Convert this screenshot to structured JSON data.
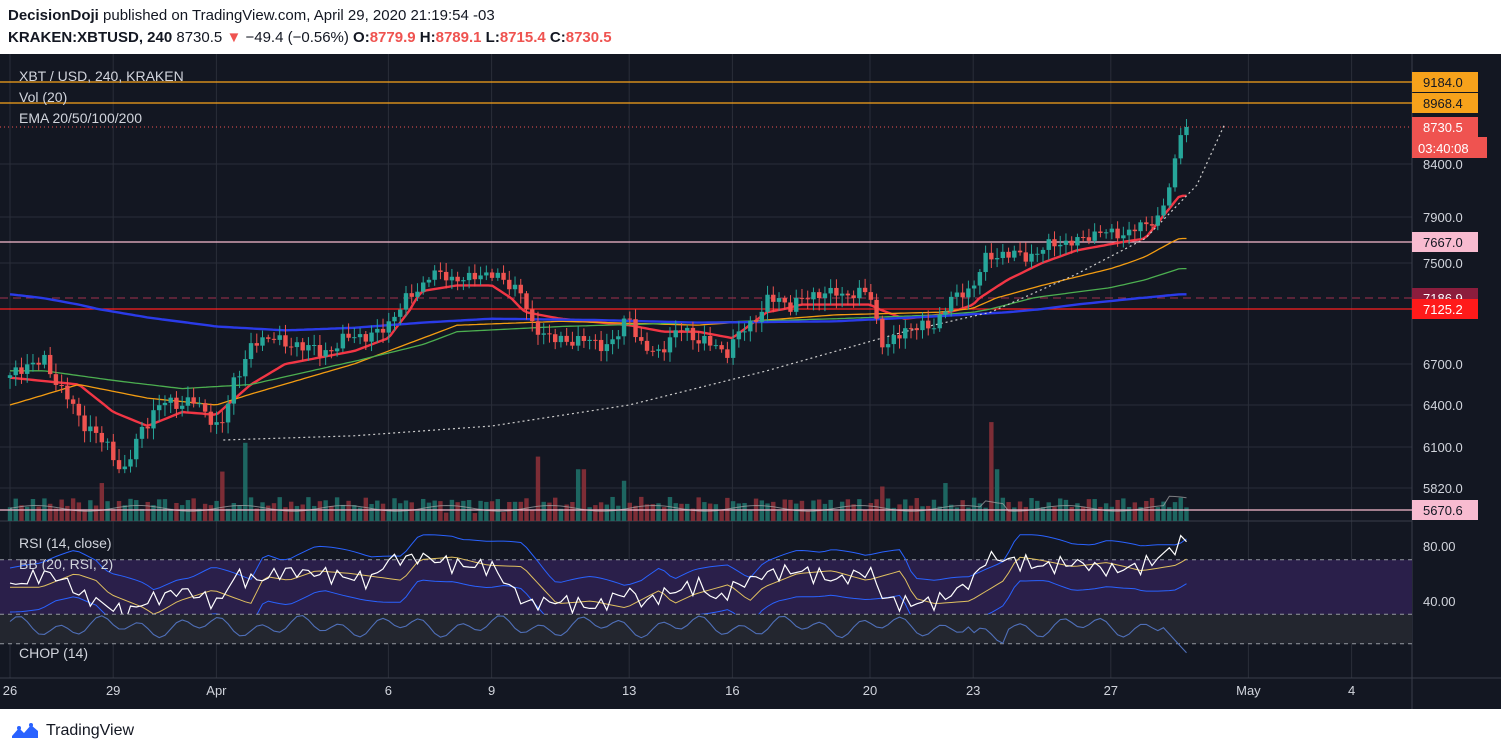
{
  "header": {
    "author": "DecisionDoji",
    "published_text": " published on TradingView.com, April 29, 2020 21:19:54 -03",
    "symbol_interval": "KRAKEN:XBTUSD, 240",
    "last": "8730.5",
    "down_arrow": "▼",
    "change": "−49.4 (−0.56%)",
    "o_label": "O:",
    "o": "8779.9",
    "h_label": "H:",
    "h": "8789.1",
    "l_label": "L:",
    "l": "8715.4",
    "c_label": "C:",
    "c": "8730.5"
  },
  "colors": {
    "background": "#131722",
    "grid": "#2a2e39",
    "text": "#d1d4dc",
    "up": "#26a69a",
    "down": "#ef5350",
    "ema20": "#f23645",
    "ema50": "#f39c12",
    "ema100": "#4caf50",
    "ema200": "#2a3be8",
    "resistance": "#f7a21b",
    "pink": "#f8bbd0",
    "rsi_line": "#ffffff",
    "bb_band": "#2962ff",
    "bb_basis": "#e0c060",
    "rsi_fill": "#2a1f4a"
  },
  "chart_data": {
    "type": "candlestick",
    "legend": [
      "XBT / USD, 240, KRAKEN",
      "Vol (20)",
      "EMA 20/50/100/200"
    ],
    "y_ticks": [
      8400,
      7900,
      7500,
      6700,
      6400,
      6100,
      5820
    ],
    "y_tick_labels": [
      "8400.0",
      "7900.0",
      "7500.0",
      "6700.0",
      "6400.0",
      "6100.0",
      "5820.0"
    ],
    "x_labels": [
      {
        "label": "26",
        "t": 0
      },
      {
        "label": "29",
        "t": 3
      },
      {
        "label": "Apr",
        "t": 6
      },
      {
        "label": "6",
        "t": 11
      },
      {
        "label": "9",
        "t": 14
      },
      {
        "label": "13",
        "t": 18
      },
      {
        "label": "16",
        "t": 21
      },
      {
        "label": "20",
        "t": 25
      },
      {
        "label": "23",
        "t": 28
      },
      {
        "label": "27",
        "t": 32
      },
      {
        "label": "May",
        "t": 36
      },
      {
        "label": "4",
        "t": 39
      }
    ],
    "horizontal_lines": [
      {
        "value": 9184.0,
        "label": "9184.0",
        "color": "#f7a21b",
        "style": "solid"
      },
      {
        "value": 8968.4,
        "label": "8968.4",
        "color": "#f7a21b",
        "style": "solid"
      },
      {
        "value": 8730.5,
        "label": "8730.5",
        "color": "#ef5350",
        "style": "dotted"
      },
      {
        "value": 7667.0,
        "label": "7667.0",
        "color": "#f8bbd0",
        "style": "solid"
      },
      {
        "value": 7186.9,
        "label": "7186.9",
        "color": "#a0304f",
        "style": "dashed"
      },
      {
        "value": 7125.2,
        "label": "7125.2",
        "color": "#ff2020",
        "style": "solid"
      },
      {
        "value": 5670.6,
        "label": "5670.6",
        "color": "#f8bbd0",
        "style": "solid"
      }
    ],
    "countdown": "03:40:08",
    "ema_names": [
      "EMA 20",
      "EMA 50",
      "EMA 100",
      "EMA 200"
    ],
    "ema_anchors": [
      {
        "name": "EMA 20",
        "color": "#f23645",
        "points": [
          [
            0,
            6600
          ],
          [
            2,
            6550
          ],
          [
            3,
            6350
          ],
          [
            4,
            6250
          ],
          [
            5,
            6350
          ],
          [
            6,
            6330
          ],
          [
            7,
            6550
          ],
          [
            8,
            6700
          ],
          [
            10,
            6800
          ],
          [
            11,
            6900
          ],
          [
            12,
            7250
          ],
          [
            13,
            7300
          ],
          [
            14,
            7300
          ],
          [
            15,
            7100
          ],
          [
            16,
            7050
          ],
          [
            18,
            7000
          ],
          [
            19,
            6950
          ],
          [
            20,
            6950
          ],
          [
            21,
            6900
          ],
          [
            22,
            7100
          ],
          [
            23,
            7150
          ],
          [
            24,
            7150
          ],
          [
            25,
            7150
          ],
          [
            26,
            7050
          ],
          [
            27,
            7080
          ],
          [
            28,
            7150
          ],
          [
            29,
            7350
          ],
          [
            30,
            7500
          ],
          [
            31,
            7600
          ],
          [
            32,
            7650
          ],
          [
            33,
            7700
          ],
          [
            34,
            8100
          ]
        ]
      },
      {
        "name": "EMA 50",
        "color": "#f39c12",
        "points": [
          [
            0,
            6400
          ],
          [
            2,
            6550
          ],
          [
            4,
            6450
          ],
          [
            6,
            6400
          ],
          [
            7,
            6480
          ],
          [
            10,
            6700
          ],
          [
            12,
            6900
          ],
          [
            13,
            7000
          ],
          [
            16,
            7030
          ],
          [
            20,
            7000
          ],
          [
            24,
            7080
          ],
          [
            27,
            7100
          ],
          [
            28,
            7130
          ],
          [
            30,
            7300
          ],
          [
            32,
            7450
          ],
          [
            33,
            7550
          ],
          [
            34,
            7700
          ]
        ]
      },
      {
        "name": "EMA 100",
        "color": "#4caf50",
        "points": [
          [
            0,
            6650
          ],
          [
            1,
            6650
          ],
          [
            3,
            6580
          ],
          [
            5,
            6520
          ],
          [
            7,
            6550
          ],
          [
            10,
            6720
          ],
          [
            12,
            6850
          ],
          [
            13,
            6950
          ],
          [
            16,
            6990
          ],
          [
            20,
            7020
          ],
          [
            24,
            7050
          ],
          [
            27,
            7080
          ],
          [
            28,
            7100
          ],
          [
            30,
            7200
          ],
          [
            32,
            7280
          ],
          [
            33,
            7350
          ],
          [
            34,
            7450
          ]
        ]
      },
      {
        "name": "EMA 200",
        "color": "#2a3be8",
        "points": [
          [
            0,
            7220
          ],
          [
            2,
            7150
          ],
          [
            4,
            7060
          ],
          [
            6,
            6990
          ],
          [
            8,
            6960
          ],
          [
            10,
            6980
          ],
          [
            12,
            7020
          ],
          [
            14,
            7050
          ],
          [
            17,
            7040
          ],
          [
            20,
            7020
          ],
          [
            24,
            7030
          ],
          [
            27,
            7070
          ],
          [
            29,
            7100
          ],
          [
            31,
            7150
          ],
          [
            33,
            7190
          ],
          [
            34,
            7220
          ]
        ]
      }
    ],
    "candle_anchors": [
      [
        0,
        6600
      ],
      [
        1,
        6750
      ],
      [
        1.5,
        6500
      ],
      [
        2,
        6300
      ],
      [
        2.4,
        6250
      ],
      [
        2.8,
        6100
      ],
      [
        3.3,
        5900
      ],
      [
        3.8,
        6250
      ],
      [
        4.5,
        6400
      ],
      [
        5.3,
        6450
      ],
      [
        6.1,
        6200
      ],
      [
        6.5,
        6600
      ],
      [
        7.0,
        6800
      ],
      [
        7.7,
        6950
      ],
      [
        8.0,
        6850
      ],
      [
        9.0,
        6800
      ],
      [
        10.0,
        6900
      ],
      [
        10.6,
        6950
      ],
      [
        11.0,
        7000
      ],
      [
        11.6,
        7200
      ],
      [
        12.2,
        7400
      ],
      [
        12.8,
        7350
      ],
      [
        13.6,
        7400
      ],
      [
        14.3,
        7350
      ],
      [
        14.8,
        7300
      ],
      [
        15.2,
        6950
      ],
      [
        16.0,
        6900
      ],
      [
        17.0,
        6850
      ],
      [
        17.6,
        6900
      ],
      [
        18.0,
        7050
      ],
      [
        18.3,
        6850
      ],
      [
        18.8,
        6800
      ],
      [
        19.5,
        6950
      ],
      [
        20.2,
        6900
      ],
      [
        20.8,
        6750
      ],
      [
        21.2,
        6950
      ],
      [
        22.0,
        7150
      ],
      [
        23.5,
        7200
      ],
      [
        24.0,
        7250
      ],
      [
        25.0,
        7200
      ],
      [
        25.4,
        6850
      ],
      [
        26.0,
        6950
      ],
      [
        26.8,
        7000
      ],
      [
        27.2,
        7150
      ],
      [
        27.6,
        7180
      ],
      [
        28.0,
        7300
      ],
      [
        28.3,
        7550
      ],
      [
        29.0,
        7550
      ],
      [
        30.0,
        7600
      ],
      [
        31.0,
        7700
      ],
      [
        32.0,
        7750
      ],
      [
        33.0,
        7800
      ],
      [
        33.4,
        7900
      ],
      [
        33.8,
        8300
      ],
      [
        34.0,
        8700
      ],
      [
        34.2,
        8730
      ]
    ],
    "ma_curve_dotted": [
      [
        6.2,
        6150
      ],
      [
        10,
        6180
      ],
      [
        14,
        6250
      ],
      [
        18,
        6400
      ],
      [
        22,
        6650
      ],
      [
        26,
        6950
      ],
      [
        28.5,
        7100
      ],
      [
        31,
        7400
      ],
      [
        33,
        7700
      ],
      [
        34.5,
        8200
      ],
      [
        35.3,
        8750
      ]
    ],
    "volume_spikes": [
      [
        2.6,
        330
      ],
      [
        3.9,
        80
      ],
      [
        6.2,
        430
      ],
      [
        6.9,
        680
      ],
      [
        6.9,
        60
      ],
      [
        9.2,
        180
      ],
      [
        15.3,
        560
      ],
      [
        16.6,
        450
      ],
      [
        17.8,
        350
      ],
      [
        20.5,
        120
      ],
      [
        23.4,
        120
      ],
      [
        25.3,
        300
      ],
      [
        27.2,
        330
      ],
      [
        28.5,
        860
      ],
      [
        28.7,
        450
      ],
      [
        34.3,
        780
      ],
      [
        34.5,
        500
      ]
    ],
    "panels": [
      {
        "name": "RSI (14, close)",
        "label2": "BB (20, RSI, 2)",
        "y_ticks": [
          80,
          40
        ],
        "y_tick_labels": [
          "80.00",
          "40.00"
        ],
        "levels": [
          70,
          30
        ],
        "rsi_anchors": [
          [
            0,
            50
          ],
          [
            1,
            60
          ],
          [
            1.6,
            55
          ],
          [
            2,
            45
          ],
          [
            3,
            35
          ],
          [
            3.3,
            30
          ],
          [
            4,
            40
          ],
          [
            5,
            48
          ],
          [
            6.1,
            38
          ],
          [
            6.5,
            58
          ],
          [
            7.2,
            55
          ],
          [
            8,
            62
          ],
          [
            9,
            60
          ],
          [
            10.5,
            55
          ],
          [
            11,
            70
          ],
          [
            12,
            72
          ],
          [
            13,
            66
          ],
          [
            14,
            65
          ],
          [
            15,
            38
          ],
          [
            16,
            40
          ],
          [
            17,
            35
          ],
          [
            18,
            48
          ],
          [
            18.4,
            38
          ],
          [
            19,
            45
          ],
          [
            20,
            52
          ],
          [
            20.6,
            40
          ],
          [
            21,
            50
          ],
          [
            22,
            60
          ],
          [
            23,
            62
          ],
          [
            24,
            55
          ],
          [
            25,
            62
          ],
          [
            25.4,
            42
          ],
          [
            26,
            38
          ],
          [
            27,
            40
          ],
          [
            28,
            55
          ],
          [
            28.4,
            72
          ],
          [
            29,
            70
          ],
          [
            30,
            65
          ],
          [
            31,
            68
          ],
          [
            32,
            62
          ],
          [
            33,
            66
          ],
          [
            33.8,
            78
          ],
          [
            34.2,
            85
          ],
          [
            34.5,
            80
          ]
        ]
      },
      {
        "name": "CHOP (14)",
        "levels": [
          61.8,
          38.2
        ]
      }
    ]
  },
  "footer": {
    "brand": "TradingView"
  }
}
